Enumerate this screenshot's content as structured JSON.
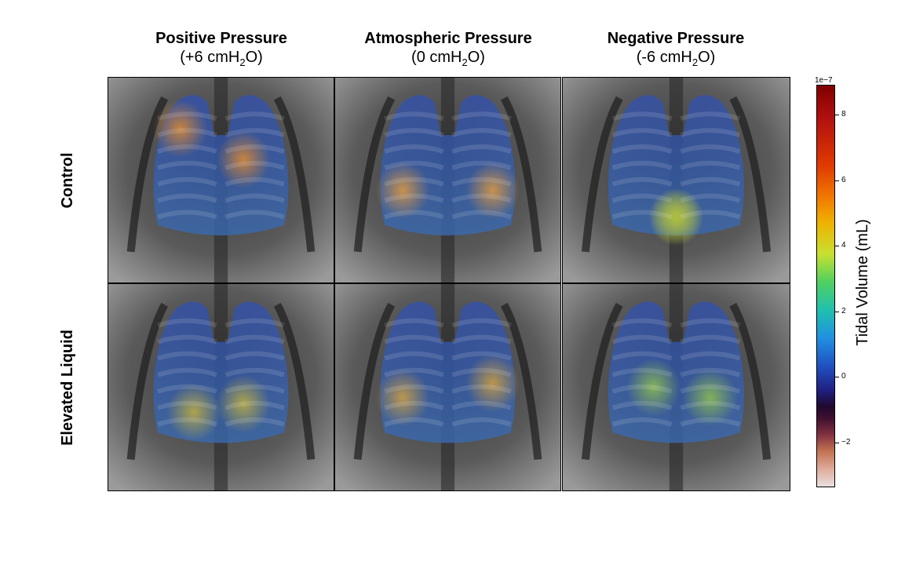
{
  "columns": [
    {
      "title": "Positive Pressure",
      "sub_pre": "(+6 cmH",
      "sub_sub": "2",
      "sub_post": "O)"
    },
    {
      "title": "Atmospheric Pressure",
      "sub_pre": "(0 cmH",
      "sub_sub": "2",
      "sub_post": "O)"
    },
    {
      "title": "Negative Pressure",
      "sub_pre": "(-6 cmH",
      "sub_sub": "2",
      "sub_post": "O)"
    }
  ],
  "rows": [
    "Control",
    "Elevated Liquid"
  ],
  "colorbar": {
    "label": "Tidal Volume (mL)",
    "exponent": "1e−7",
    "ticks": [
      "8",
      "6",
      "4",
      "2",
      "0",
      "−2"
    ],
    "colormap": "diverging: dark red (high) to blue/purple (0) to light pink (negative)"
  }
}
